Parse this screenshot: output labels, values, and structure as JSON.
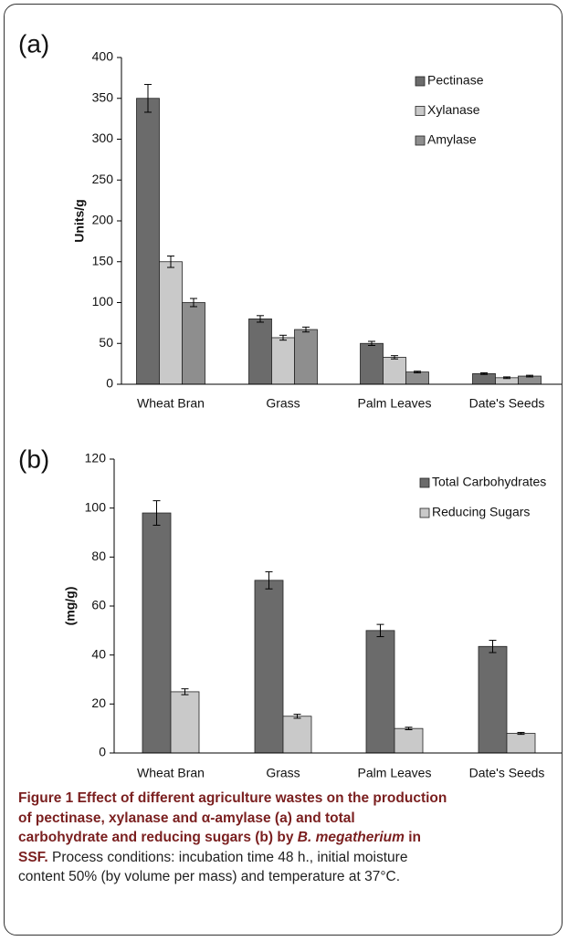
{
  "chart_data": [
    {
      "type": "bar",
      "panel": "(a)",
      "ylabel": "Units/g",
      "categories": [
        "Wheat Bran",
        "Grass",
        "Palm Leaves",
        "Date's Seeds"
      ],
      "series": [
        {
          "name": "Pectinase",
          "color": "#6b6b6b",
          "values": [
            350,
            80,
            50,
            13
          ],
          "errors": [
            17,
            4,
            2.5,
            1
          ]
        },
        {
          "name": "Xylanase",
          "color": "#c9c9c9",
          "values": [
            150,
            57,
            33,
            8
          ],
          "errors": [
            7,
            3,
            2,
            1
          ]
        },
        {
          "name": "Amylase",
          "color": "#8e8e8e",
          "values": [
            100,
            67,
            15,
            10
          ],
          "errors": [
            5,
            3,
            1,
            1
          ]
        }
      ],
      "ylim": [
        0,
        400
      ],
      "yticks": [
        0,
        50,
        100,
        150,
        200,
        250,
        300,
        350,
        400
      ],
      "legend": "top-right"
    },
    {
      "type": "bar",
      "panel": "(b)",
      "ylabel": "(mg/g)",
      "categories": [
        "Wheat Bran",
        "Grass",
        "Palm Leaves",
        "Date's Seeds"
      ],
      "series": [
        {
          "name": "Total Carbohydrates",
          "color": "#6b6b6b",
          "values": [
            98,
            70.5,
            50,
            43.5
          ],
          "errors": [
            5,
            3.5,
            2.5,
            2.5
          ]
        },
        {
          "name": "Reducing Sugars",
          "color": "#c9c9c9",
          "values": [
            25,
            15,
            10,
            8
          ],
          "errors": [
            1.2,
            0.8,
            0.5,
            0.4
          ]
        }
      ],
      "ylim": [
        0,
        120
      ],
      "yticks": [
        0,
        20,
        40,
        60,
        80,
        100,
        120
      ],
      "legend": "top-right"
    }
  ],
  "caption": {
    "bold": "Figure 1 Effect of different agriculture wastes on the production of pectinase, xylanase and α-amylase (a) and total carbohydrate and reducing sugars (b) by ",
    "species": "B. megatherium",
    "bold_end": " in SSF.",
    "text": " Process conditions: incubation time 48 h., initial moisture content 50% (by volume per mass) and temperature at 37°C."
  }
}
